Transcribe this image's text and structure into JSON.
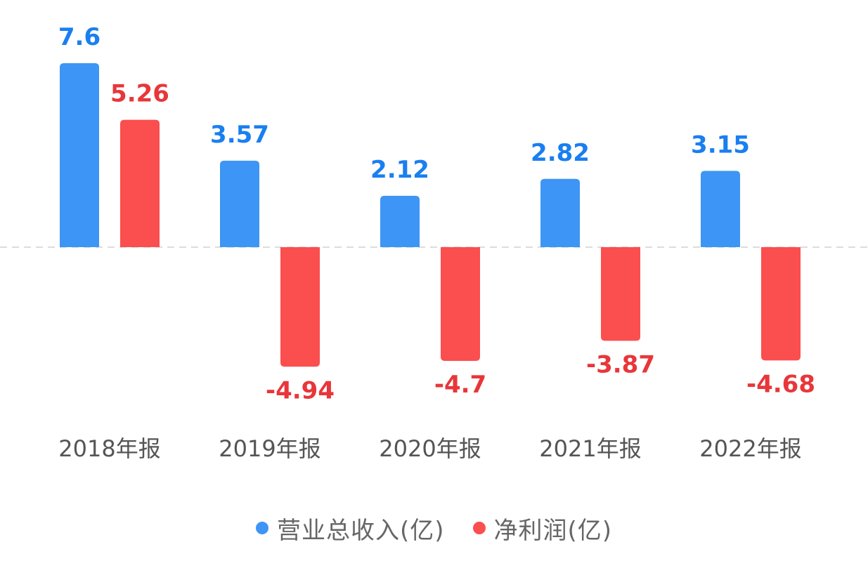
{
  "chart_data": {
    "type": "bar",
    "categories": [
      "2018年报",
      "2019年报",
      "2020年报",
      "2021年报",
      "2022年报"
    ],
    "series": [
      {
        "name": "营业总收入(亿)",
        "color": "#3d95f5",
        "label_color": "#1a7ff0",
        "values": [
          7.6,
          3.57,
          2.12,
          2.82,
          3.15
        ]
      },
      {
        "name": "净利润(亿)",
        "color": "#fb4e4e",
        "label_color": "#e8363a",
        "values": [
          5.26,
          -4.94,
          -4.7,
          -3.87,
          -4.68
        ]
      }
    ],
    "legend_position": "bottom",
    "zero_line": "dashed"
  }
}
